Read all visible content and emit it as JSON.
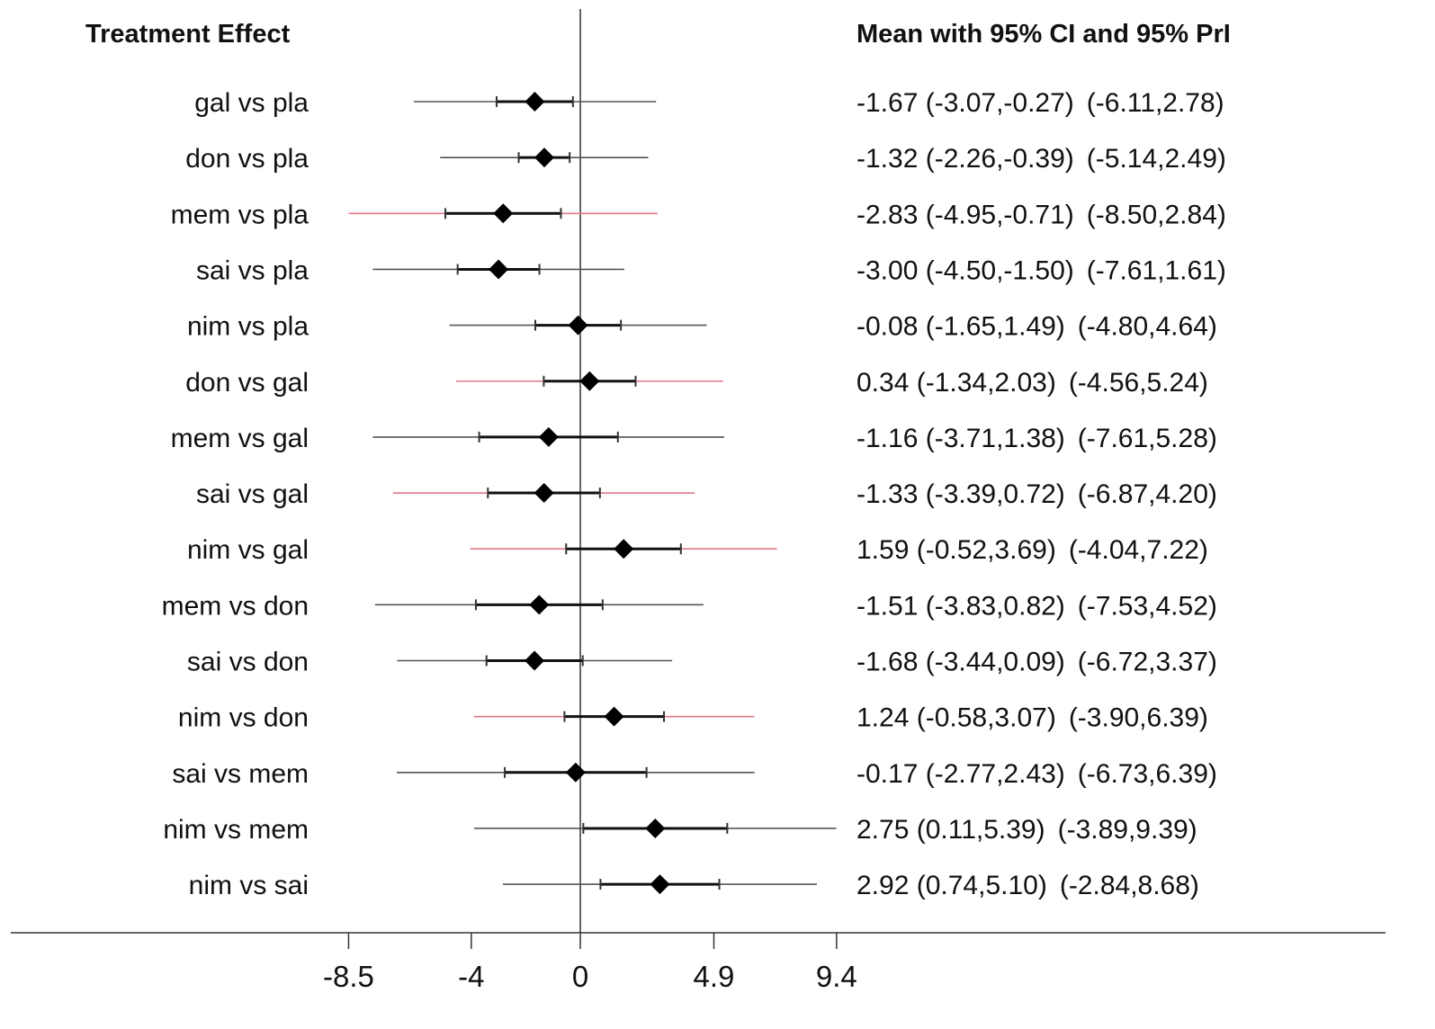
{
  "chart_data": {
    "type": "forest",
    "left_header": "Treatment Effect",
    "right_header": "Mean with 95% CI and 95% PrI",
    "x_ticks": [
      -8.5,
      -4,
      0,
      4.9,
      9.4
    ],
    "x_tick_labels": [
      "-8.5",
      "-4",
      "0",
      "4.9",
      "9.4"
    ],
    "reference_line": 0,
    "colors": {
      "ci": "#111111",
      "pri": "#555555",
      "pri_highlight": "#e07a8a",
      "marker": "#000000"
    },
    "rows": [
      {
        "label": "gal vs pla",
        "mean": -1.67,
        "ci": [
          -3.07,
          -0.27
        ],
        "pri": [
          -6.11,
          2.78
        ],
        "pri_highlight": false,
        "ci_text": "-1.67 (-3.07,-0.27)",
        "pri_text": "(-6.11,2.78)"
      },
      {
        "label": "don vs pla",
        "mean": -1.32,
        "ci": [
          -2.26,
          -0.39
        ],
        "pri": [
          -5.14,
          2.49
        ],
        "pri_highlight": false,
        "ci_text": "-1.32 (-2.26,-0.39)",
        "pri_text": "(-5.14,2.49)"
      },
      {
        "label": "mem vs pla",
        "mean": -2.83,
        "ci": [
          -4.95,
          -0.71
        ],
        "pri": [
          -8.5,
          2.84
        ],
        "pri_highlight": true,
        "ci_text": "-2.83 (-4.95,-0.71)",
        "pri_text": "(-8.50,2.84)"
      },
      {
        "label": "sai vs pla",
        "mean": -3.0,
        "ci": [
          -4.5,
          -1.5
        ],
        "pri": [
          -7.61,
          1.61
        ],
        "pri_highlight": false,
        "ci_text": "-3.00 (-4.50,-1.50)",
        "pri_text": "(-7.61,1.61)"
      },
      {
        "label": "nim vs pla",
        "mean": -0.08,
        "ci": [
          -1.65,
          1.49
        ],
        "pri": [
          -4.8,
          4.64
        ],
        "pri_highlight": false,
        "ci_text": "-0.08 (-1.65,1.49)",
        "pri_text": "(-4.80,4.64)"
      },
      {
        "label": "don vs gal",
        "mean": 0.34,
        "ci": [
          -1.34,
          2.03
        ],
        "pri": [
          -4.56,
          5.24
        ],
        "pri_highlight": true,
        "ci_text": "0.34 (-1.34,2.03)",
        "pri_text": "(-4.56,5.24)"
      },
      {
        "label": "mem vs gal",
        "mean": -1.16,
        "ci": [
          -3.71,
          1.38
        ],
        "pri": [
          -7.61,
          5.28
        ],
        "pri_highlight": false,
        "ci_text": "-1.16 (-3.71,1.38)",
        "pri_text": "(-7.61,5.28)"
      },
      {
        "label": "sai vs gal",
        "mean": -1.33,
        "ci": [
          -3.39,
          0.72
        ],
        "pri": [
          -6.87,
          4.2
        ],
        "pri_highlight": true,
        "ci_text": "-1.33 (-3.39,0.72)",
        "pri_text": "(-6.87,4.20)"
      },
      {
        "label": "nim vs gal",
        "mean": 1.59,
        "ci": [
          -0.52,
          3.69
        ],
        "pri": [
          -4.04,
          7.22
        ],
        "pri_highlight": true,
        "ci_text": "1.59 (-0.52,3.69)",
        "pri_text": "(-4.04,7.22)"
      },
      {
        "label": "mem vs don",
        "mean": -1.51,
        "ci": [
          -3.83,
          0.82
        ],
        "pri": [
          -7.53,
          4.52
        ],
        "pri_highlight": false,
        "ci_text": "-1.51 (-3.83,0.82)",
        "pri_text": "(-7.53,4.52)"
      },
      {
        "label": "sai vs don",
        "mean": -1.68,
        "ci": [
          -3.44,
          0.09
        ],
        "pri": [
          -6.72,
          3.37
        ],
        "pri_highlight": false,
        "ci_text": "-1.68 (-3.44,0.09)",
        "pri_text": "(-6.72,3.37)"
      },
      {
        "label": "nim vs don",
        "mean": 1.24,
        "ci": [
          -0.58,
          3.07
        ],
        "pri": [
          -3.9,
          6.39
        ],
        "pri_highlight": true,
        "ci_text": "1.24 (-0.58,3.07)",
        "pri_text": "(-3.90,6.39)"
      },
      {
        "label": "sai vs mem",
        "mean": -0.17,
        "ci": [
          -2.77,
          2.43
        ],
        "pri": [
          -6.73,
          6.39
        ],
        "pri_highlight": false,
        "ci_text": "-0.17 (-2.77,2.43)",
        "pri_text": "(-6.73,6.39)"
      },
      {
        "label": "nim vs mem",
        "mean": 2.75,
        "ci": [
          0.11,
          5.39
        ],
        "pri": [
          -3.89,
          9.39
        ],
        "pri_highlight": false,
        "ci_text": "2.75 (0.11,5.39)",
        "pri_text": "(-3.89,9.39)"
      },
      {
        "label": "nim vs sai",
        "mean": 2.92,
        "ci": [
          0.74,
          5.1
        ],
        "pri": [
          -2.84,
          8.68
        ],
        "pri_highlight": false,
        "ci_text": "2.92 (0.74,5.10)",
        "pri_text": "(-2.84,8.68)"
      }
    ]
  }
}
